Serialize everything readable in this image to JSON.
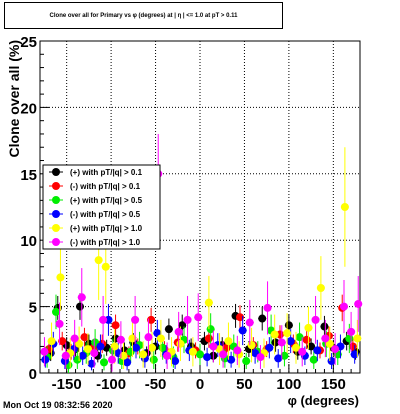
{
  "title": "Clone  over all for Primary vs φ (degrees) at | η | <= 1.0 at pT > 0.11",
  "footer": "Mon Oct 19 08:32:56 2020",
  "colors": {
    "black": "#000000",
    "red": "#ff0000",
    "green": "#00ee00",
    "blue": "#0000ff",
    "yellow": "#ffff00",
    "magenta": "#ff00ff"
  },
  "chart_data": {
    "type": "scatter",
    "title": "Clone  over all for Primary vs φ (degrees) at | η | <= 1.0 at pT > 0.11",
    "xlabel": "φ (degrees)",
    "ylabel": "Clone  over all (%)",
    "xlim": [
      -180,
      180
    ],
    "ylim": [
      0,
      25
    ],
    "xticks": [
      -150,
      -100,
      -50,
      0,
      50,
      100,
      150
    ],
    "yticks": [
      0,
      5,
      10,
      15,
      20,
      25
    ],
    "grid": true,
    "legend_position": "middle-left",
    "series": [
      {
        "name": "(+) with pT/|q| > 0.1",
        "color": "#000000",
        "points": [
          [
            -168,
            1.5,
            0.6
          ],
          [
            -160,
            4.9,
            0.9
          ],
          [
            -150,
            2.1,
            0.6
          ],
          [
            -140,
            1.8,
            0.6
          ],
          [
            -135,
            5.0,
            1.0
          ],
          [
            -125,
            2.2,
            0.7
          ],
          [
            -115,
            1.3,
            0.5
          ],
          [
            -105,
            1.9,
            0.6
          ],
          [
            -95,
            2.6,
            0.7
          ],
          [
            -85,
            1.7,
            0.6
          ],
          [
            -75,
            2.3,
            0.7
          ],
          [
            -60,
            1.5,
            0.5
          ],
          [
            -50,
            2.0,
            0.6
          ],
          [
            -35,
            3.3,
            0.8
          ],
          [
            -20,
            3.6,
            0.8
          ],
          [
            -10,
            2.0,
            0.6
          ],
          [
            5,
            2.4,
            0.7
          ],
          [
            15,
            1.3,
            0.5
          ],
          [
            25,
            2.1,
            0.6
          ],
          [
            40,
            4.3,
            0.9
          ],
          [
            55,
            1.8,
            0.6
          ],
          [
            70,
            4.1,
            0.9
          ],
          [
            85,
            2.3,
            0.7
          ],
          [
            100,
            3.6,
            0.8
          ],
          [
            110,
            1.6,
            0.6
          ],
          [
            125,
            2.0,
            0.6
          ],
          [
            140,
            3.5,
            0.8
          ],
          [
            150,
            1.9,
            0.6
          ],
          [
            165,
            2.4,
            0.7
          ],
          [
            175,
            1.6,
            0.6
          ]
        ]
      },
      {
        "name": "(-) with pT/|q| > 0.1",
        "color": "#ff0000",
        "points": [
          [
            -170,
            1.8,
            0.6
          ],
          [
            -155,
            2.4,
            0.7
          ],
          [
            -145,
            1.6,
            0.6
          ],
          [
            -130,
            2.7,
            0.7
          ],
          [
            -120,
            1.9,
            0.6
          ],
          [
            -110,
            2.2,
            0.7
          ],
          [
            -95,
            3.6,
            0.8
          ],
          [
            -80,
            1.5,
            0.5
          ],
          [
            -70,
            2.0,
            0.6
          ],
          [
            -55,
            4.0,
            0.9
          ],
          [
            -40,
            1.8,
            0.6
          ],
          [
            -25,
            2.3,
            0.7
          ],
          [
            -5,
            1.7,
            0.6
          ],
          [
            10,
            2.6,
            0.7
          ],
          [
            30,
            1.9,
            0.6
          ],
          [
            45,
            4.2,
            0.9
          ],
          [
            60,
            2.1,
            0.6
          ],
          [
            75,
            1.8,
            0.6
          ],
          [
            90,
            2.9,
            0.7
          ],
          [
            105,
            2.2,
            0.7
          ],
          [
            120,
            2.5,
            0.7
          ],
          [
            135,
            1.7,
            0.6
          ],
          [
            145,
            2.8,
            0.7
          ],
          [
            160,
            4.9,
            1.0
          ],
          [
            172,
            2.0,
            0.6
          ]
        ]
      },
      {
        "name": "(+) with pT/|q| > 0.5",
        "color": "#00ee00",
        "points": [
          [
            -172,
            1.2,
            0.8
          ],
          [
            -162,
            4.6,
            1.3
          ],
          [
            -148,
            0.6,
            0.6
          ],
          [
            -138,
            1.0,
            0.7
          ],
          [
            -128,
            1.5,
            0.8
          ],
          [
            -118,
            2.3,
            1.0
          ],
          [
            -108,
            0.8,
            0.6
          ],
          [
            -98,
            1.7,
            0.9
          ],
          [
            -88,
            0.9,
            0.6
          ],
          [
            -78,
            1.6,
            0.8
          ],
          [
            -68,
            2.1,
            1.0
          ],
          [
            -52,
            1.0,
            0.7
          ],
          [
            -42,
            1.9,
            0.9
          ],
          [
            -30,
            1.2,
            0.8
          ],
          [
            -18,
            2.5,
            1.0
          ],
          [
            0,
            1.4,
            0.8
          ],
          [
            12,
            3.3,
            1.2
          ],
          [
            28,
            1.1,
            0.7
          ],
          [
            38,
            2.0,
            0.9
          ],
          [
            52,
            0.9,
            0.6
          ],
          [
            65,
            1.6,
            0.8
          ],
          [
            80,
            3.2,
            1.2
          ],
          [
            95,
            1.3,
            0.8
          ],
          [
            112,
            2.7,
            1.1
          ],
          [
            128,
            1.0,
            0.7
          ],
          [
            142,
            2.2,
            1.0
          ],
          [
            155,
            1.4,
            0.8
          ],
          [
            168,
            2.6,
            1.1
          ]
        ]
      },
      {
        "name": "(-) with pT/|q| > 0.5",
        "color": "#0000ff",
        "points": [
          [
            -174,
            1.0,
            0.6
          ],
          [
            -165,
            2.2,
            0.9
          ],
          [
            -152,
            0.9,
            0.6
          ],
          [
            -142,
            1.8,
            0.8
          ],
          [
            -132,
            1.3,
            0.7
          ],
          [
            -122,
            0.7,
            0.5
          ],
          [
            -112,
            2.0,
            0.9
          ],
          [
            -103,
            4.0,
            1.2
          ],
          [
            -92,
            1.5,
            0.8
          ],
          [
            -82,
            0.8,
            0.6
          ],
          [
            -72,
            1.9,
            0.8
          ],
          [
            -62,
            1.1,
            0.7
          ],
          [
            -48,
            3.0,
            1.0
          ],
          [
            -38,
            1.4,
            0.7
          ],
          [
            -28,
            0.9,
            0.6
          ],
          [
            -12,
            1.7,
            0.8
          ],
          [
            8,
            1.2,
            0.7
          ],
          [
            20,
            2.1,
            0.9
          ],
          [
            35,
            1.0,
            0.6
          ],
          [
            48,
            3.2,
            1.1
          ],
          [
            62,
            1.5,
            0.8
          ],
          [
            78,
            1.9,
            0.8
          ],
          [
            88,
            1.1,
            0.7
          ],
          [
            102,
            2.4,
            0.9
          ],
          [
            118,
            1.3,
            0.7
          ],
          [
            132,
            1.7,
            0.8
          ],
          [
            148,
            0.9,
            0.6
          ],
          [
            158,
            2.0,
            0.9
          ],
          [
            174,
            1.4,
            0.7
          ]
        ]
      },
      {
        "name": "(+) with pT/|q| > 1.0",
        "color": "#ffff00",
        "points": [
          [
            -167,
            2.4,
            1.4
          ],
          [
            -157,
            7.2,
            2.5
          ],
          [
            -146,
            1.5,
            1.1
          ],
          [
            -136,
            2.2,
            1.3
          ],
          [
            -126,
            1.8,
            1.2
          ],
          [
            -114,
            8.5,
            3.0
          ],
          [
            -106,
            8.0,
            2.8
          ],
          [
            -96,
            2.0,
            1.3
          ],
          [
            -86,
            1.3,
            1.0
          ],
          [
            -76,
            2.6,
            1.4
          ],
          [
            -64,
            1.4,
            1.0
          ],
          [
            -54,
            1.9,
            1.2
          ],
          [
            -44,
            2.6,
            1.4
          ],
          [
            -32,
            1.6,
            1.1
          ],
          [
            -22,
            2.2,
            1.3
          ],
          [
            -8,
            1.6,
            1.1
          ],
          [
            10,
            5.3,
            2.0
          ],
          [
            22,
            1.8,
            1.2
          ],
          [
            32,
            2.4,
            1.4
          ],
          [
            44,
            1.4,
            1.0
          ],
          [
            58,
            2.1,
            1.3
          ],
          [
            72,
            1.5,
            1.1
          ],
          [
            84,
            2.9,
            1.5
          ],
          [
            98,
            3.0,
            1.5
          ],
          [
            108,
            1.9,
            1.2
          ],
          [
            122,
            3.4,
            1.6
          ],
          [
            136,
            6.4,
            2.4
          ],
          [
            146,
            2.2,
            1.3
          ],
          [
            163,
            12.5,
            4.5
          ],
          [
            177,
            2.6,
            1.4
          ]
        ]
      },
      {
        "name": "(-) with pT/|q| > 1.0",
        "color": "#ff00ff",
        "points": [
          [
            -175,
            1.6,
            1.1
          ],
          [
            -158,
            3.7,
            1.6
          ],
          [
            -151,
            1.3,
            1.0
          ],
          [
            -141,
            2.6,
            1.4
          ],
          [
            -133,
            5.7,
            2.2
          ],
          [
            -119,
            1.5,
            1.1
          ],
          [
            -109,
            4.0,
            1.8
          ],
          [
            -99,
            1.0,
            0.9
          ],
          [
            -89,
            2.5,
            1.4
          ],
          [
            -73,
            4.0,
            1.8
          ],
          [
            -58,
            2.7,
            1.4
          ],
          [
            -47,
            15.0,
            3.0
          ],
          [
            -37,
            1.3,
            1.0
          ],
          [
            -24,
            3.1,
            1.5
          ],
          [
            -14,
            4.0,
            1.8
          ],
          [
            -2,
            4.2,
            1.8
          ],
          [
            15,
            2.0,
            1.2
          ],
          [
            26,
            1.4,
            1.0
          ],
          [
            42,
            1.7,
            1.1
          ],
          [
            56,
            3.8,
            1.7
          ],
          [
            68,
            1.2,
            0.9
          ],
          [
            76,
            4.9,
            2.0
          ],
          [
            92,
            2.3,
            1.3
          ],
          [
            115,
            1.6,
            1.1
          ],
          [
            130,
            4.0,
            1.8
          ],
          [
            141,
            2.6,
            1.4
          ],
          [
            152,
            1.8,
            1.2
          ],
          [
            162,
            5.0,
            2.0
          ],
          [
            170,
            3.1,
            1.5
          ],
          [
            178,
            5.2,
            2.1
          ]
        ]
      }
    ]
  }
}
